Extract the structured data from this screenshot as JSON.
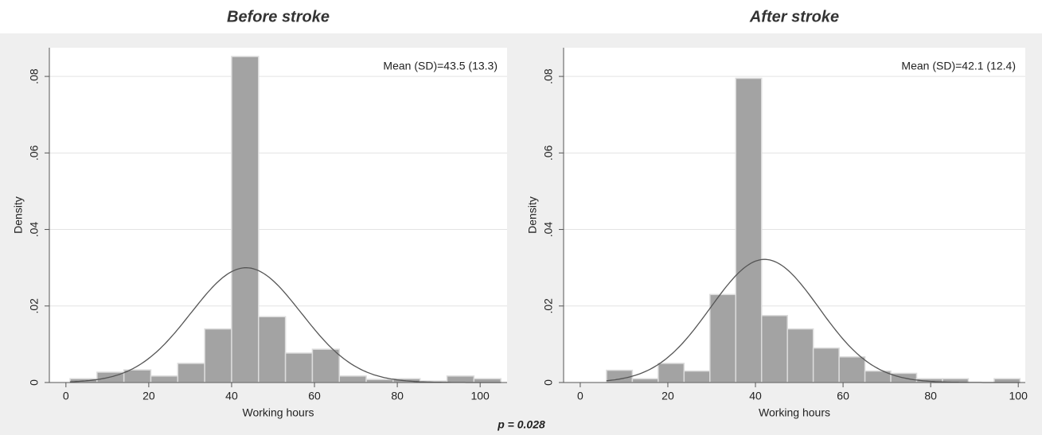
{
  "chart_data": [
    {
      "type": "histogram",
      "title": "Before stroke",
      "xlabel": "Working hours",
      "ylabel": "Density",
      "annotation": "Mean (SD)=43.5 (13.3)",
      "mean": 43.5,
      "sd": 13.3,
      "bins": [
        1,
        7.5,
        14,
        20.5,
        27,
        33.5,
        40,
        46.5,
        53,
        59.5,
        66,
        72.5,
        79,
        85.5,
        92,
        98.5,
        105
      ],
      "values": [
        0.001,
        0.0027,
        0.0033,
        0.0017,
        0.005,
        0.014,
        0.0852,
        0.0172,
        0.0077,
        0.0087,
        0.0017,
        0.0008,
        0.001,
        0.0004,
        0.0017,
        0.001
      ],
      "color": "#a3a3a3",
      "xlim": [
        -4,
        106.5
      ],
      "ylim": [
        0,
        0.0875
      ],
      "xticks": [
        0,
        20,
        40,
        60,
        80,
        100
      ],
      "yticks": [
        0,
        {
          "value": 0.02,
          "label": ".02"
        },
        {
          "value": 0.04,
          "label": ".04"
        },
        {
          "value": 0.06,
          "label": ".06"
        },
        {
          "value": 0.08,
          "label": ".08"
        }
      ],
      "grid": true
    },
    {
      "type": "histogram",
      "title": "After stroke",
      "xlabel": "Working hours",
      "ylabel": "Density",
      "annotation": "Mean (SD)=42.1 (12.4)",
      "mean": 42.1,
      "sd": 12.4,
      "bins": [
        6,
        11.9,
        17.8,
        23.7,
        29.6,
        35.5,
        41.4,
        47.3,
        53.2,
        59.1,
        65,
        70.9,
        76.8,
        82.7,
        88.6,
        94.5,
        100.4
      ],
      "values": [
        0.0032,
        0.001,
        0.005,
        0.003,
        0.023,
        0.0795,
        0.0175,
        0.014,
        0.009,
        0.0067,
        0.003,
        0.0024,
        0.001,
        0.001,
        0,
        0.001
      ],
      "color": "#a3a3a3",
      "xlim": [
        -3.8,
        101.6
      ],
      "ylim": [
        0,
        0.0875
      ],
      "xticks": [
        0,
        20,
        40,
        60,
        80,
        100
      ],
      "yticks": [
        0,
        {
          "value": 0.02,
          "label": ".02"
        },
        {
          "value": 0.04,
          "label": ".04"
        },
        {
          "value": 0.06,
          "label": ".06"
        },
        {
          "value": 0.08,
          "label": ".08"
        }
      ],
      "grid": true
    }
  ],
  "footer": {
    "annotation": "p = 0.028"
  }
}
